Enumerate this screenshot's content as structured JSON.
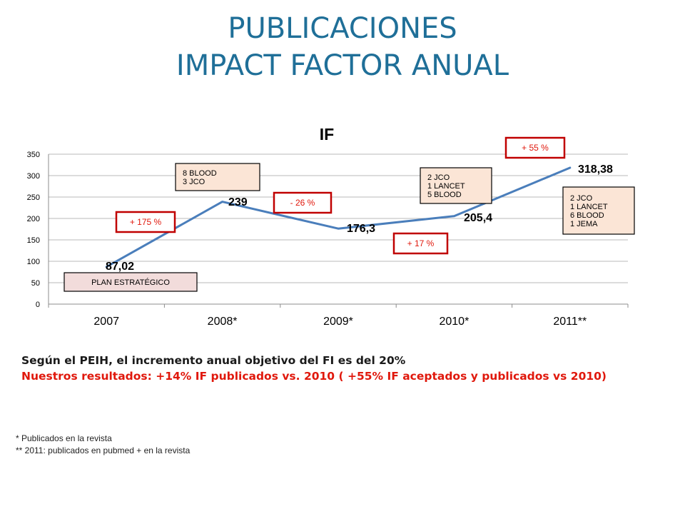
{
  "slide": {
    "title_line1": "PUBLICACIONES",
    "title_line2": "IMPACT FACTOR ANUAL",
    "note_objective": "Según el PEIH, el incremento anual objetivo del FI es del 20%",
    "note_results": "Nuestros resultados: +14%  IF publicados vs. 2010 ( +55% IF aceptados y publicados vs 2010)",
    "footnote_1": "*  Publicados en la revista",
    "footnote_2": "** 2011: publicados en pubmed + en la revista"
  },
  "chart_data": {
    "type": "line",
    "title": "IF",
    "categories": [
      "2007",
      "2008*",
      "2009*",
      "2010*",
      "2011**"
    ],
    "series": [
      {
        "values": [
          87.02,
          239,
          176.3,
          205.4,
          318.38
        ]
      }
    ],
    "data_labels": [
      "87,02",
      "239",
      "176,3",
      "205,4",
      "318,38"
    ],
    "ylim": [
      0,
      350
    ],
    "yticks": [
      0,
      50,
      100,
      150,
      200,
      250,
      300,
      350
    ],
    "grid": true,
    "legend": "none",
    "line_color": "#4a7ebb",
    "change_labels": [
      "+ 175 %",
      "-  26 %",
      "+ 17 %",
      "+ 55 %"
    ],
    "info_boxes": [
      {
        "name": "plan-estrategico-box",
        "lines": [
          "PLAN ESTRATÉGICO"
        ],
        "fill": "#f2dcdb",
        "border": "#000000"
      },
      {
        "name": "box-2008",
        "lines": [
          "8 BLOOD",
          "3 JCO"
        ],
        "fill": "#fbe5d6",
        "border": "#000000"
      },
      {
        "name": "box-2010",
        "lines": [
          "2 JCO",
          "1 LANCET",
          "5 BLOOD"
        ],
        "fill": "#fbe5d6",
        "border": "#000000"
      },
      {
        "name": "box-2011",
        "lines": [
          "2 JCO",
          "1 LANCET",
          "6 BLOOD",
          "1 JEMA"
        ],
        "fill": "#fbe5d6",
        "border": "#000000"
      }
    ],
    "change_box_border": "#c00000"
  }
}
